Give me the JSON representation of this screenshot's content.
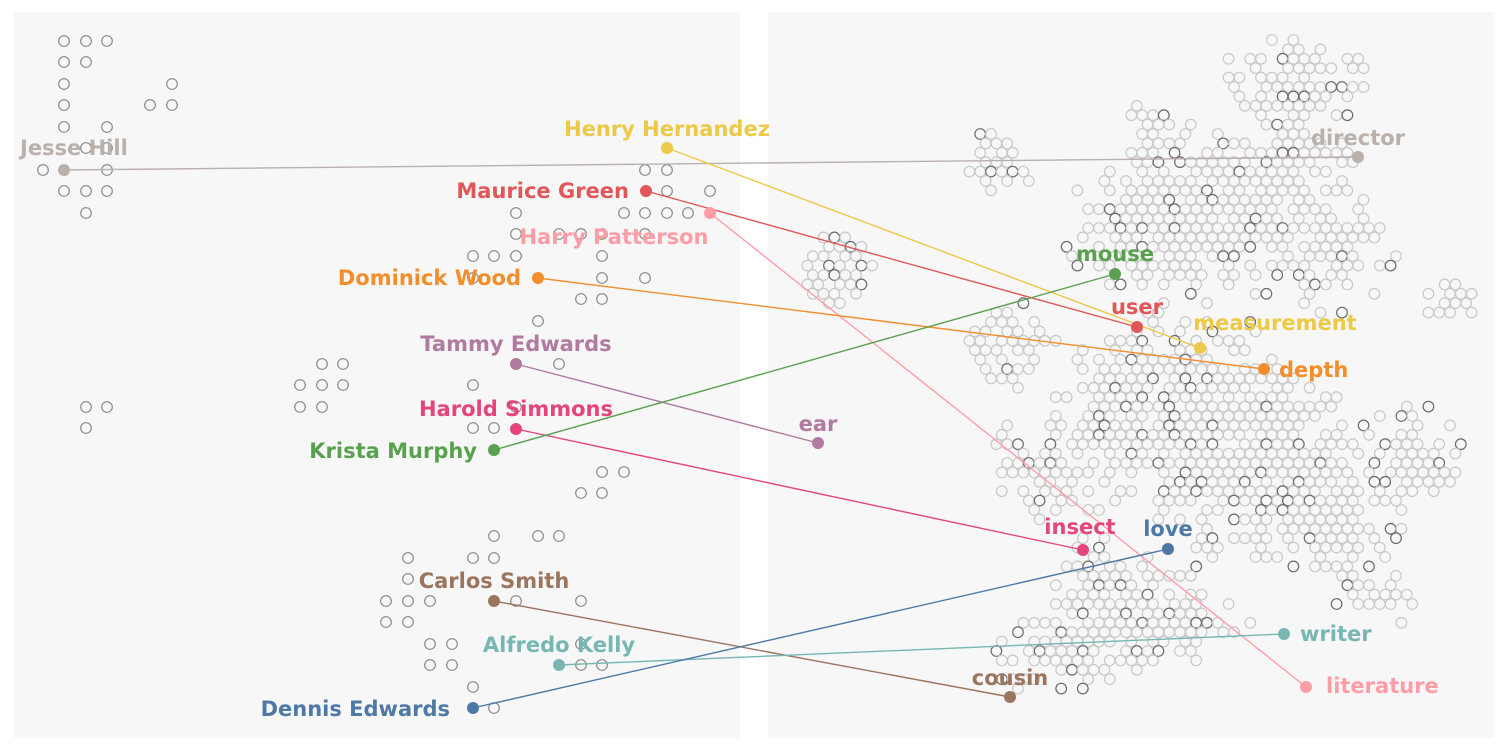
{
  "pairs": [
    {
      "person": "Jesse Hill",
      "word": "director",
      "color": "#bab0ac"
    },
    {
      "person": "Henry Hernandez",
      "word": "measurement",
      "color": "#edc948"
    },
    {
      "person": "Maurice Green",
      "word": "user",
      "color": "#e15759"
    },
    {
      "person": "Harry Patterson",
      "word": "literature",
      "color": "#ff9da7"
    },
    {
      "person": "Dominick Wood",
      "word": "depth",
      "color": "#f28e2b"
    },
    {
      "person": "Tammy Edwards",
      "word": "ear",
      "color": "#b07aa1"
    },
    {
      "person": "Harold Simmons",
      "word": "insect",
      "color": "#e6457a"
    },
    {
      "person": "Krista Murphy",
      "word": "mouse",
      "color": "#59a14f"
    },
    {
      "person": "Carlos Smith",
      "word": "cousin",
      "color": "#9c755f"
    },
    {
      "person": "Alfredo Kelly",
      "word": "writer",
      "color": "#76b7b2"
    },
    {
      "person": "Dennis Edwards",
      "word": "love",
      "color": "#4e79a7"
    }
  ],
  "colors": {
    "panel": "#f7f7f7",
    "left_dot": "#8a8a8a",
    "right_dot": "#c8c8c8",
    "right_dot_dark": "#6a6a6a"
  }
}
